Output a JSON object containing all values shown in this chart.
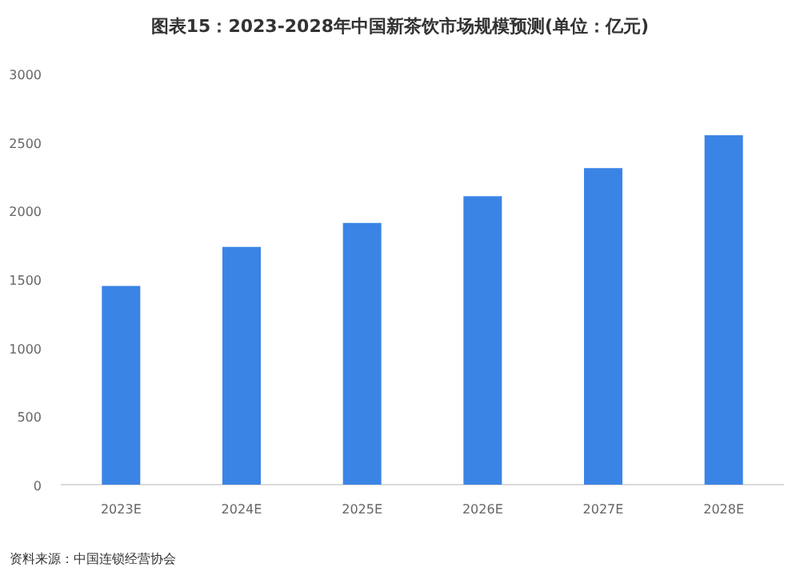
{
  "chart_data": {
    "type": "bar",
    "title": "图表15：2023-2028年中国新茶饮市场规模预测(单位：亿元)",
    "categories": [
      "2023E",
      "2024E",
      "2025E",
      "2026E",
      "2027E",
      "2028E"
    ],
    "values": [
      1450,
      1735,
      1910,
      2105,
      2310,
      2550
    ],
    "color": "#3a84e6",
    "ylim": [
      0,
      3000
    ],
    "yticks": [
      0,
      500,
      1000,
      1500,
      2000,
      2500,
      3000
    ],
    "grid": false,
    "annotations": [
      "资料来源：中国连锁经营协会"
    ]
  }
}
